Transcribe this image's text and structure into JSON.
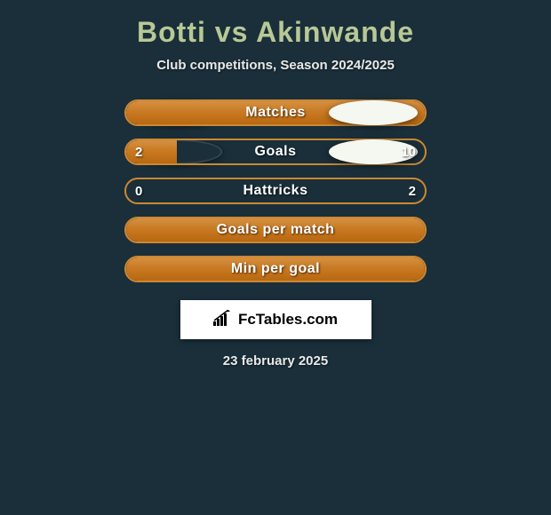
{
  "title": "Botti vs Akinwande",
  "subtitle": "Club competitions, Season 2024/2025",
  "background_color": "#1a2f3a",
  "title_color": "#b8c896",
  "text_color": "#e8e8e8",
  "bar_fill_color": "#cc8833",
  "bar_border_color": "#cc8833",
  "ellipse_left_color": "#1a2f3a",
  "ellipse_right_color": "#f5f8f0",
  "rows": [
    {
      "label": "Matches",
      "left_value": "",
      "right_value": "",
      "fill_type": "full",
      "has_ellipses": true,
      "has_values": false
    },
    {
      "label": "Goals",
      "left_value": "2",
      "right_value": "10",
      "fill_type": "left",
      "left_fill_percent": 17,
      "has_ellipses": true,
      "has_values": true
    },
    {
      "label": "Hattricks",
      "left_value": "0",
      "right_value": "2",
      "fill_type": "none",
      "has_ellipses": false,
      "has_values": true
    },
    {
      "label": "Goals per match",
      "left_value": "",
      "right_value": "",
      "fill_type": "full",
      "has_ellipses": false,
      "has_values": false
    },
    {
      "label": "Min per goal",
      "left_value": "",
      "right_value": "",
      "fill_type": "full",
      "has_ellipses": false,
      "has_values": false
    }
  ],
  "logo_text": "FcTables.com",
  "date": "23 february 2025"
}
